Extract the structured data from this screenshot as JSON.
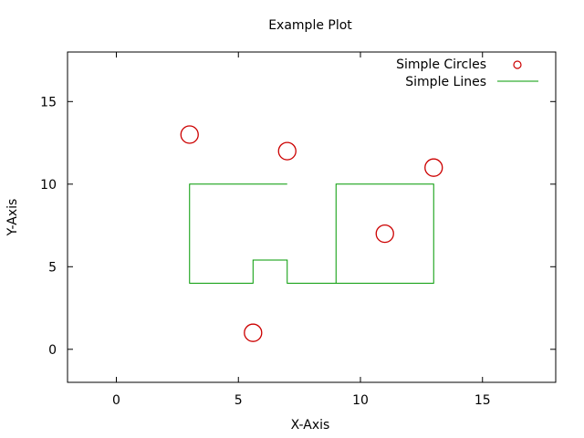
{
  "chart_data": {
    "type": "scatter",
    "title": "Example Plot",
    "xlabel": "X-Axis",
    "ylabel": "Y-Axis",
    "xlim": [
      -2,
      18
    ],
    "ylim": [
      -2,
      18
    ],
    "xticks": [
      0,
      5,
      10,
      15
    ],
    "yticks": [
      0,
      5,
      10,
      15
    ],
    "grid": false,
    "legend_position": "top-right",
    "series": [
      {
        "name": "Simple Circles",
        "type": "scatter",
        "color": "#cc0000",
        "marker": "circle",
        "points": [
          {
            "x": 3,
            "y": 13
          },
          {
            "x": 7,
            "y": 12
          },
          {
            "x": 13,
            "y": 11
          },
          {
            "x": 11,
            "y": 7
          },
          {
            "x": 5.6,
            "y": 1
          }
        ]
      },
      {
        "name": "Simple Lines",
        "type": "line",
        "color": "#009900",
        "segments": [
          [
            {
              "x": 7,
              "y": 10
            },
            {
              "x": 3,
              "y": 10
            },
            {
              "x": 3,
              "y": 4
            },
            {
              "x": 5.6,
              "y": 4
            },
            {
              "x": 5.6,
              "y": 5.4
            },
            {
              "x": 7,
              "y": 5.4
            },
            {
              "x": 7,
              "y": 4
            },
            {
              "x": 9,
              "y": 4
            },
            {
              "x": 9,
              "y": 10
            },
            {
              "x": 13,
              "y": 10
            },
            {
              "x": 13,
              "y": 4
            },
            {
              "x": 9,
              "y": 4
            }
          ]
        ]
      }
    ]
  }
}
